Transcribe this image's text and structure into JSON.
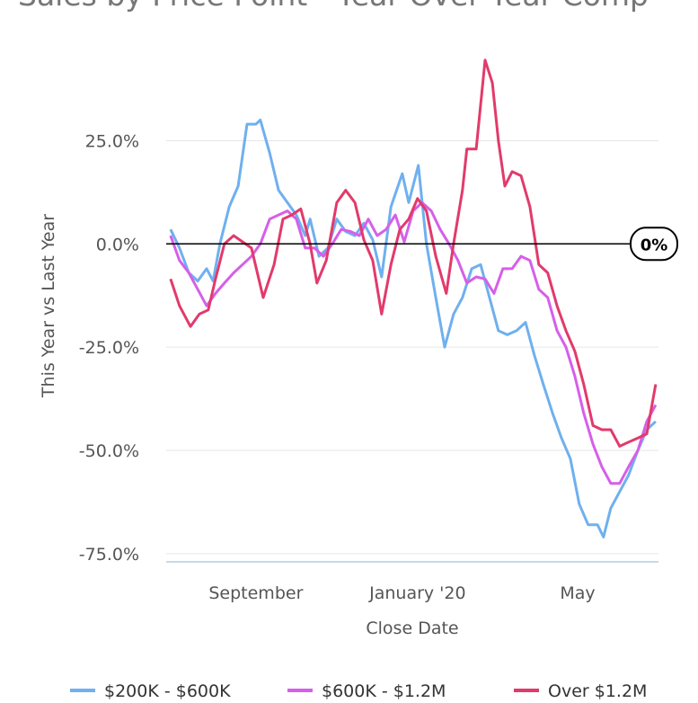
{
  "chart_data": {
    "type": "line",
    "title": "Sales by Price Point - Year Over Year Comp",
    "x_label": "Close Date",
    "y_label": "This Year vs Last Year",
    "annotation": "0%",
    "xlim": [
      0,
      12.18
    ],
    "xticks": [
      {
        "value": 2.22,
        "label": "September"
      },
      {
        "value": 6.22,
        "label": "January '20"
      },
      {
        "value": 10.18,
        "label": "May"
      }
    ],
    "ylim": [
      -77,
      46
    ],
    "yticks": [
      {
        "value": -75,
        "label": "-75.0%"
      },
      {
        "value": -50,
        "label": "-50.0%"
      },
      {
        "value": -25,
        "label": "-25.0%"
      },
      {
        "value": 0,
        "label": "0.0%"
      },
      {
        "value": 25,
        "label": "25.0%"
      }
    ],
    "grid": true,
    "legend": "bottom",
    "series": [
      {
        "name": "$200K - $600K",
        "color": "#6fb0ef",
        "x": [
          0.11,
          0.33,
          0.56,
          0.78,
          1.0,
          1.16,
          1.33,
          1.56,
          1.78,
          2.0,
          2.22,
          2.33,
          2.56,
          2.78,
          3.0,
          3.22,
          3.44,
          3.56,
          3.78,
          4.0,
          4.22,
          4.44,
          4.67,
          4.89,
          5.11,
          5.33,
          5.56,
          5.84,
          6.0,
          6.24,
          6.44,
          6.67,
          6.89,
          7.11,
          7.33,
          7.56,
          7.78,
          8.0,
          8.22,
          8.44,
          8.67,
          8.89,
          9.11,
          9.33,
          9.56,
          9.78,
          10.0,
          10.22,
          10.44,
          10.67,
          10.82,
          11.0,
          11.22,
          11.44,
          11.67,
          11.89,
          12.11
        ],
        "values": [
          3.5,
          -1,
          -7,
          -9,
          -6,
          -9,
          0,
          9,
          14,
          29,
          29,
          30,
          22,
          13,
          10,
          7,
          2,
          6,
          -3,
          -1,
          6,
          3,
          2,
          5,
          1,
          -8,
          9,
          17,
          10,
          19,
          0,
          -13,
          -25,
          -17,
          -13,
          -6,
          -5,
          -13,
          -21,
          -22,
          -21,
          -19,
          -27,
          -34,
          -41,
          -47,
          -52,
          -63,
          -68,
          -68,
          -71,
          -64,
          -60,
          -56,
          -50,
          -45,
          -43
        ]
      },
      {
        "name": "$600K - $1.2M",
        "color": "#d65fe9",
        "x": [
          0.11,
          0.33,
          0.56,
          0.78,
          1.0,
          1.22,
          1.44,
          1.67,
          1.89,
          2.11,
          2.33,
          2.56,
          2.78,
          3.0,
          3.22,
          3.44,
          3.67,
          3.89,
          4.11,
          4.33,
          4.56,
          4.78,
          5.0,
          5.22,
          5.44,
          5.67,
          5.89,
          6.11,
          6.33,
          6.56,
          6.78,
          7.0,
          7.22,
          7.44,
          7.67,
          7.89,
          8.11,
          8.33,
          8.56,
          8.78,
          9.0,
          9.22,
          9.44,
          9.67,
          9.89,
          10.11,
          10.33,
          10.56,
          10.78,
          11.0,
          11.22,
          11.44,
          11.67,
          11.89,
          12.11
        ],
        "values": [
          2,
          -4,
          -7,
          -11,
          -15,
          -12,
          -9.5,
          -7,
          -5,
          -3,
          0,
          6,
          7,
          8,
          6,
          -1,
          -1,
          -3,
          0,
          3.5,
          3,
          2,
          6,
          2,
          3.5,
          7,
          0.5,
          8,
          10,
          8,
          3.5,
          0,
          -4,
          -9.5,
          -8,
          -8.5,
          -12,
          -6,
          -6,
          -3,
          -4,
          -11,
          -13,
          -21,
          -25,
          -32,
          -41,
          -48.5,
          -54,
          -58,
          -58,
          -54,
          -50,
          -43,
          -39
        ]
      },
      {
        "name": "Over $1.2M",
        "color": "#e23a6b",
        "x": [
          0.11,
          0.33,
          0.6,
          0.82,
          1.04,
          1.22,
          1.44,
          1.67,
          1.89,
          2.11,
          2.4,
          2.67,
          2.89,
          3.11,
          3.33,
          3.56,
          3.73,
          3.96,
          4.22,
          4.44,
          4.67,
          4.89,
          5.11,
          5.33,
          5.56,
          5.78,
          6.0,
          6.22,
          6.44,
          6.67,
          6.93,
          7.11,
          7.33,
          7.44,
          7.67,
          7.89,
          8.07,
          8.22,
          8.38,
          8.56,
          8.78,
          9.0,
          9.22,
          9.44,
          9.67,
          9.89,
          10.11,
          10.33,
          10.56,
          10.78,
          11.0,
          11.22,
          11.44,
          11.67,
          11.89,
          12.11
        ],
        "values": [
          -8.5,
          -15,
          -20,
          -17,
          -16,
          -8.5,
          0,
          2,
          0.5,
          -1,
          -13,
          -5,
          6,
          7,
          8.5,
          0,
          -9.5,
          -4,
          10,
          13,
          10,
          1,
          -4,
          -17,
          -5,
          3.5,
          6,
          11,
          8,
          -3,
          -12,
          0,
          13,
          23,
          23,
          44.5,
          39,
          25,
          14,
          17.5,
          16.5,
          9,
          -5,
          -7,
          -15,
          -21,
          -26,
          -34,
          -44,
          -45,
          -45,
          -49,
          -48,
          -47,
          -46,
          -34
        ]
      }
    ]
  }
}
